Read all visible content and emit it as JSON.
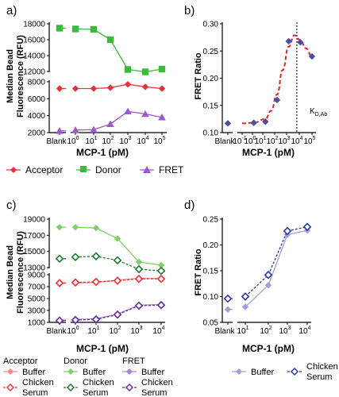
{
  "colors": {
    "acceptor": "#e8323a",
    "donor": "#3cba3c",
    "fret": "#9b59c9",
    "fit": "#e0262b",
    "point": "#4b4fa3",
    "acceptor_buffer": "#f08a8a",
    "acceptor_serum": "#e8323a",
    "donor_buffer": "#7fd06a",
    "donor_serum": "#1e7a2a",
    "fret_buffer": "#a887d6",
    "fret_serum": "#6a2aa0",
    "d_buffer": "#9fa0d9",
    "d_serum": "#2b3aa0"
  },
  "panels": {
    "a": "a)",
    "b": "b)",
    "c": "c)",
    "d": "d)"
  },
  "labels": {
    "ylabel_bead_1": "Median Bead",
    "ylabel_bead_2": "Fluorescence (RFU)",
    "ylabel_fret": "FRET Ratio",
    "xlabel": "MCP-1 (pM)",
    "blank": "Blank",
    "kd_main": "K",
    "kd_sub": "D,Ab"
  },
  "legend_a": {
    "acceptor": "Acceptor",
    "donor": "Donor",
    "fret": "FRET"
  },
  "legend_c": {
    "acceptor": "Acceptor",
    "donor": "Donor",
    "fret": "FRET",
    "buffer": "Buffer",
    "chicken": "Chicken",
    "serum": "Serum"
  },
  "legend_d": {
    "buffer": "Buffer",
    "chicken": "Chicken",
    "serum": "Serum"
  },
  "chart_data": [
    {
      "panel": "a",
      "type": "line",
      "xlabel": "MCP-1 (pM)",
      "ylabel": "Median Bead Fluorescence (RFU)",
      "x": [
        "Blank",
        1,
        10,
        100,
        1000,
        10000,
        100000
      ],
      "x_ticks": [
        "Blank",
        "10",
        "10",
        "10",
        "10",
        "10",
        "10"
      ],
      "x_tick_exp": [
        "",
        "0",
        "1",
        "2",
        "3",
        "4",
        "5"
      ],
      "y_ticks_upper": [
        "12000",
        "14000",
        "16000",
        "18000"
      ],
      "y_ticks_lower": [
        "2000",
        "4000",
        "6000",
        "8000"
      ],
      "y_broken_axis": true,
      "series": [
        {
          "name": "Acceptor",
          "values": [
            7200,
            7200,
            7200,
            7300,
            7700,
            7400,
            7200
          ]
        },
        {
          "name": "Donor",
          "values": [
            17450,
            17350,
            17300,
            16000,
            12250,
            11950,
            12300
          ]
        },
        {
          "name": "FRET",
          "values": [
            2200,
            2300,
            2350,
            3000,
            4500,
            4200,
            3800
          ]
        }
      ]
    },
    {
      "panel": "b",
      "type": "scatter",
      "xlabel": "MCP-1 (pM)",
      "ylabel": "FRET Ratio",
      "x": [
        "Blank",
        0.1,
        1,
        10,
        100,
        1000,
        10000,
        100000
      ],
      "x_ticks": [
        "Blank",
        "10",
        "10",
        "10",
        "10",
        "10",
        "10",
        "10"
      ],
      "x_tick_exp": [
        "",
        "-1",
        "0",
        "1",
        "2",
        "3",
        "4",
        "5"
      ],
      "y_ticks": [
        "0.10",
        "0.15",
        "0.20",
        "0.25",
        "0.30"
      ],
      "ylim": [
        0.1,
        0.3
      ],
      "points": [
        {
          "x": "Blank",
          "y": 0.117
        },
        {
          "x": 1,
          "y": 0.118
        },
        {
          "x": 10,
          "y": 0.12
        },
        {
          "x": 100,
          "y": 0.16
        },
        {
          "x": 1000,
          "y": 0.268
        },
        {
          "x": 10000,
          "y": 0.266
        },
        {
          "x": 100000,
          "y": 0.24
        }
      ],
      "fit": [
        {
          "x": 0.1,
          "y": 0.117
        },
        {
          "x": 1,
          "y": 0.118
        },
        {
          "x": 10,
          "y": 0.125
        },
        {
          "x": 30,
          "y": 0.14
        },
        {
          "x": 100,
          "y": 0.17
        },
        {
          "x": 300,
          "y": 0.215
        },
        {
          "x": 1000,
          "y": 0.258
        },
        {
          "x": 3000,
          "y": 0.279
        },
        {
          "x": 10000,
          "y": 0.27
        },
        {
          "x": 30000,
          "y": 0.255
        },
        {
          "x": 100000,
          "y": 0.24
        }
      ],
      "kd": 5000
    },
    {
      "panel": "c",
      "type": "line",
      "xlabel": "MCP-1 (pM)",
      "ylabel": "Median Bead Fluorescence (RFU)",
      "x": [
        "Blank",
        1,
        10,
        100,
        1000,
        10000
      ],
      "x_ticks": [
        "Blank",
        "10",
        "10",
        "10",
        "10",
        "10"
      ],
      "x_tick_exp": [
        "",
        "0",
        "1",
        "2",
        "3",
        "4"
      ],
      "y_ticks_upper": [
        "13000",
        "15000",
        "17000",
        "19000"
      ],
      "y_ticks_lower": [
        "1000",
        "3000",
        "5000",
        "7000",
        "9000"
      ],
      "y_broken_axis": true,
      "series": [
        {
          "name": "Acceptor Buffer",
          "values": [
            7600,
            7600,
            7700,
            8100,
            8400,
            8400
          ]
        },
        {
          "name": "Acceptor Chicken Serum",
          "values": [
            7600,
            7700,
            7800,
            8000,
            8300,
            8300
          ]
        },
        {
          "name": "Donor Buffer",
          "values": [
            18000,
            18000,
            17900,
            16600,
            13700,
            13300
          ]
        },
        {
          "name": "Donor Chicken Serum",
          "values": [
            14100,
            14300,
            14400,
            13900,
            12800,
            12600
          ]
        },
        {
          "name": "FRET Buffer",
          "values": [
            1400,
            1500,
            1600,
            2400,
            3900,
            4000
          ]
        },
        {
          "name": "FRET Chicken Serum",
          "values": [
            1300,
            1400,
            1500,
            2300,
            3800,
            3900
          ]
        }
      ]
    },
    {
      "panel": "d",
      "type": "line",
      "xlabel": "MCP-1 (pM)",
      "ylabel": "FRET Ratio",
      "x": [
        "Blank",
        10,
        100,
        1000,
        10000
      ],
      "x_ticks": [
        "Blank",
        "10",
        "10",
        "10",
        "10"
      ],
      "x_tick_exp": [
        "",
        "1",
        "2",
        "3",
        "4"
      ],
      "y_ticks": [
        "0.05",
        "0.10",
        "0.15",
        "0.20",
        "0.25"
      ],
      "ylim": [
        0.05,
        0.25
      ],
      "series": [
        {
          "name": "Buffer",
          "values": [
            0.075,
            0.08,
            0.122,
            0.22,
            0.228
          ]
        },
        {
          "name": "Chicken Serum",
          "values": [
            0.096,
            0.1,
            0.142,
            0.227,
            0.235
          ]
        }
      ]
    }
  ]
}
